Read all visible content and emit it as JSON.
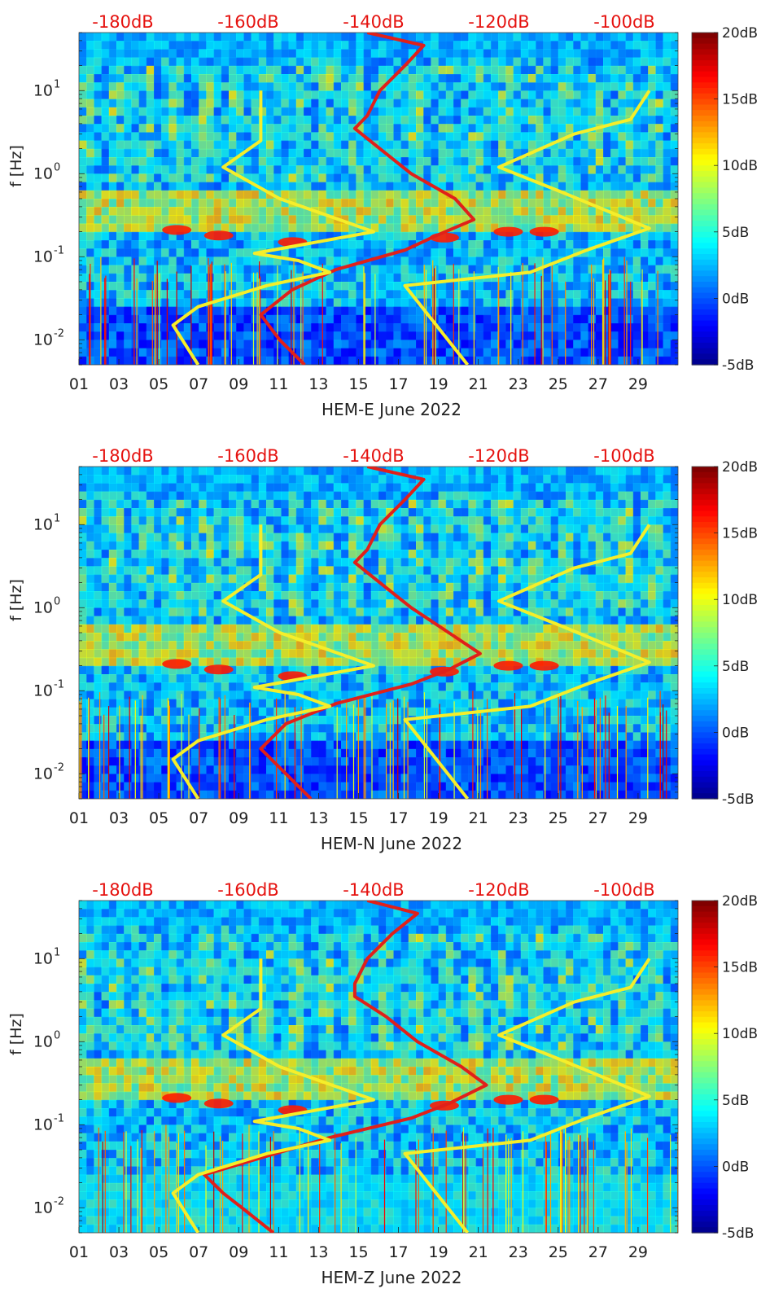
{
  "colors": {
    "db_scale_text": "#e5120f",
    "psd_line": "#e0201a",
    "noise_model": "#f5ee2a",
    "spectrogram_base": "#1d2fd0"
  },
  "chart_data": [
    {
      "type": "heatmap",
      "component": "HEM-E",
      "xlabel": "HEM-E June 2022",
      "ylabel": "f [Hz]",
      "yscale": "log",
      "ylim": [
        0.005,
        50
      ],
      "xlim": [
        1,
        31
      ],
      "x_ticks": [
        "01",
        "03",
        "05",
        "07",
        "09",
        "11",
        "13",
        "15",
        "17",
        "19",
        "21",
        "23",
        "25",
        "27",
        "29"
      ],
      "y_ticks": [
        "10^-2",
        "10^-1",
        "10^0",
        "10^1"
      ],
      "db_scale_ticks": [
        "-180dB",
        "-160dB",
        "-140dB",
        "-120dB",
        "-100dB"
      ],
      "colorbar": {
        "ticks": [
          "20dB",
          "15dB",
          "10dB",
          "5dB",
          "0dB",
          "-5dB"
        ],
        "range": [
          -5,
          20
        ]
      },
      "series": [
        {
          "name": "",
          "kind": "median-psd",
          "db": [
            [
              0.005,
              -151
            ],
            [
              0.01,
              -155
            ],
            [
              0.02,
              -158
            ],
            [
              0.04,
              -153
            ],
            [
              0.07,
              -146
            ],
            [
              0.12,
              -135
            ],
            [
              0.18,
              -130
            ],
            [
              0.28,
              -124
            ],
            [
              0.5,
              -127
            ],
            [
              1,
              -134
            ],
            [
              2,
              -139
            ],
            [
              3.5,
              -143
            ],
            [
              5,
              -141
            ],
            [
              10,
              -139
            ],
            [
              20,
              -135
            ],
            [
              35,
              -132
            ],
            [
              50,
              -141
            ]
          ]
        },
        {
          "name": "",
          "kind": "nlnm",
          "db": [
            [
              0.005,
              -168
            ],
            [
              0.015,
              -172
            ],
            [
              0.025,
              -168
            ],
            [
              0.045,
              -157
            ],
            [
              0.065,
              -147
            ],
            [
              0.09,
              -152
            ],
            [
              0.11,
              -159
            ],
            [
              0.2,
              -140
            ],
            [
              0.5,
              -155
            ],
            [
              1.2,
              -164
            ],
            [
              2.5,
              -158
            ],
            [
              10,
              -158
            ]
          ]
        },
        {
          "name": "",
          "kind": "nhnm",
          "db": [
            [
              0.005,
              -125
            ],
            [
              0.045,
              -135
            ],
            [
              0.065,
              -115
            ],
            [
              0.12,
              -106
            ],
            [
              0.22,
              -96
            ],
            [
              0.6,
              -110
            ],
            [
              1.2,
              -120
            ],
            [
              3,
              -108
            ],
            [
              4.5,
              -99
            ],
            [
              10,
              -96
            ]
          ]
        }
      ]
    },
    {
      "type": "heatmap",
      "component": "HEM-N",
      "xlabel": "HEM-N June 2022",
      "ylabel": "f [Hz]",
      "yscale": "log",
      "ylim": [
        0.005,
        50
      ],
      "xlim": [
        1,
        31
      ],
      "x_ticks": [
        "01",
        "03",
        "05",
        "07",
        "09",
        "11",
        "13",
        "15",
        "17",
        "19",
        "21",
        "23",
        "25",
        "27",
        "29"
      ],
      "y_ticks": [
        "10^-2",
        "10^-1",
        "10^0",
        "10^1"
      ],
      "db_scale_ticks": [
        "-180dB",
        "-160dB",
        "-140dB",
        "-120dB",
        "-100dB"
      ],
      "colorbar": {
        "ticks": [
          "20dB",
          "15dB",
          "10dB",
          "5dB",
          "0dB",
          "-5dB"
        ],
        "range": [
          -5,
          20
        ]
      },
      "series": [
        {
          "name": "",
          "kind": "median-psd",
          "db": [
            [
              0.005,
              -150
            ],
            [
              0.01,
              -154
            ],
            [
              0.02,
              -158
            ],
            [
              0.04,
              -154
            ],
            [
              0.07,
              -146
            ],
            [
              0.12,
              -134
            ],
            [
              0.18,
              -128
            ],
            [
              0.28,
              -123
            ],
            [
              0.5,
              -128
            ],
            [
              1,
              -134
            ],
            [
              2,
              -139
            ],
            [
              3.5,
              -143
            ],
            [
              5,
              -141
            ],
            [
              10,
              -139
            ],
            [
              20,
              -135
            ],
            [
              35,
              -132
            ],
            [
              50,
              -141
            ]
          ]
        },
        {
          "name": "",
          "kind": "nlnm",
          "db": [
            [
              0.005,
              -168
            ],
            [
              0.015,
              -172
            ],
            [
              0.025,
              -168
            ],
            [
              0.045,
              -157
            ],
            [
              0.065,
              -147
            ],
            [
              0.09,
              -152
            ],
            [
              0.11,
              -159
            ],
            [
              0.2,
              -140
            ],
            [
              0.5,
              -155
            ],
            [
              1.2,
              -164
            ],
            [
              2.5,
              -158
            ],
            [
              10,
              -158
            ]
          ]
        },
        {
          "name": "",
          "kind": "nhnm",
          "db": [
            [
              0.005,
              -125
            ],
            [
              0.045,
              -135
            ],
            [
              0.065,
              -115
            ],
            [
              0.12,
              -106
            ],
            [
              0.22,
              -96
            ],
            [
              0.6,
              -110
            ],
            [
              1.2,
              -120
            ],
            [
              3,
              -108
            ],
            [
              4.5,
              -99
            ],
            [
              10,
              -96
            ]
          ]
        }
      ]
    },
    {
      "type": "heatmap",
      "component": "HEM-Z",
      "xlabel": "HEM-Z June 2022",
      "ylabel": "f [Hz]",
      "yscale": "log",
      "ylim": [
        0.005,
        50
      ],
      "xlim": [
        1,
        31
      ],
      "x_ticks": [
        "01",
        "03",
        "05",
        "07",
        "09",
        "11",
        "13",
        "15",
        "17",
        "19",
        "21",
        "23",
        "25",
        "27",
        "29"
      ],
      "y_ticks": [
        "10^-2",
        "10^-1",
        "10^0",
        "10^1"
      ],
      "db_scale_ticks": [
        "-180dB",
        "-160dB",
        "-140dB",
        "-120dB",
        "-100dB"
      ],
      "colorbar": {
        "ticks": [
          "20dB",
          "15dB",
          "10dB",
          "5dB",
          "0dB",
          "-5dB"
        ],
        "range": [
          -5,
          20
        ]
      },
      "series": [
        {
          "name": "",
          "kind": "median-psd",
          "db": [
            [
              0.005,
              -156
            ],
            [
              0.01,
              -161
            ],
            [
              0.015,
              -164
            ],
            [
              0.025,
              -167
            ],
            [
              0.04,
              -158
            ],
            [
              0.07,
              -147
            ],
            [
              0.12,
              -134
            ],
            [
              0.18,
              -128
            ],
            [
              0.3,
              -122
            ],
            [
              0.5,
              -126
            ],
            [
              1,
              -133
            ],
            [
              2,
              -138
            ],
            [
              3.5,
              -143
            ],
            [
              5,
              -143
            ],
            [
              10,
              -141
            ],
            [
              20,
              -137
            ],
            [
              35,
              -133
            ],
            [
              50,
              -141
            ]
          ]
        },
        {
          "name": "",
          "kind": "nlnm",
          "db": [
            [
              0.005,
              -168
            ],
            [
              0.015,
              -172
            ],
            [
              0.025,
              -168
            ],
            [
              0.045,
              -157
            ],
            [
              0.065,
              -147
            ],
            [
              0.09,
              -152
            ],
            [
              0.11,
              -159
            ],
            [
              0.2,
              -140
            ],
            [
              0.5,
              -155
            ],
            [
              1.2,
              -164
            ],
            [
              2.5,
              -158
            ],
            [
              10,
              -158
            ]
          ]
        },
        {
          "name": "",
          "kind": "nhnm",
          "db": [
            [
              0.005,
              -125
            ],
            [
              0.045,
              -135
            ],
            [
              0.065,
              -115
            ],
            [
              0.12,
              -106
            ],
            [
              0.22,
              -96
            ],
            [
              0.6,
              -110
            ],
            [
              1.2,
              -120
            ],
            [
              3,
              -108
            ],
            [
              4.5,
              -99
            ],
            [
              10,
              -96
            ]
          ]
        }
      ]
    }
  ]
}
